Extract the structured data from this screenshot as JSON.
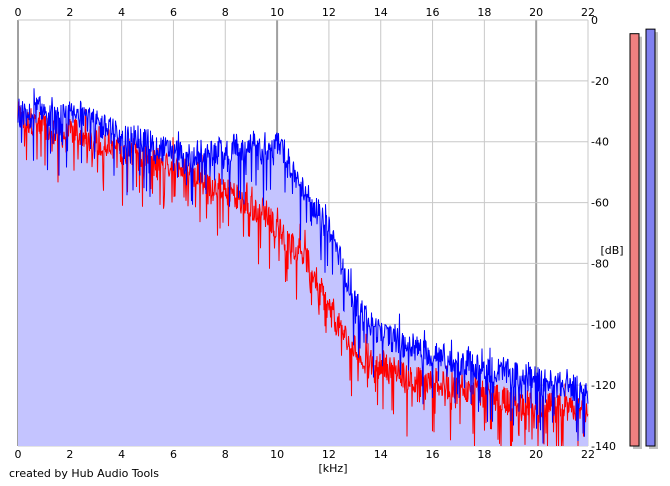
{
  "credit": "created by Hub Audio Tools",
  "chart_data": {
    "type": "area",
    "title": "",
    "xlabel": "[kHz]",
    "ylabel": "[dB]",
    "xlim": [
      0,
      22
    ],
    "ylim": [
      -140,
      0
    ],
    "x_ticks": [
      "0",
      "2",
      "4",
      "6",
      "8",
      "10",
      "12",
      "14",
      "16",
      "18",
      "20",
      "22"
    ],
    "y_ticks": [
      "0",
      "-20",
      "-40",
      "-60",
      "-80",
      "-100",
      "-120",
      "-140"
    ],
    "grid": true,
    "colors": {
      "background": "#ffffff",
      "fill": "#c4c4ff",
      "series_red": "#ff0000",
      "series_blue": "#0000ff",
      "grid_major": "#a0a0a0",
      "grid_minor": "#c8c8c8",
      "meter_red": "#f08080",
      "meter_blue": "#8080f0",
      "meter_shadow": "#c0c0c0"
    },
    "series": [
      {
        "color": "#ff0000",
        "x": [
          0,
          0.25,
          0.5,
          0.75,
          1,
          1.25,
          1.5,
          1.75,
          2,
          2.25,
          2.5,
          2.75,
          3,
          3.25,
          3.5,
          3.75,
          4,
          4.25,
          4.5,
          4.75,
          5,
          5.25,
          5.5,
          5.75,
          6,
          6.25,
          6.5,
          6.75,
          7,
          7.25,
          7.5,
          7.75,
          8,
          8.25,
          8.5,
          8.75,
          9,
          9.25,
          9.5,
          9.75,
          10,
          10.25,
          10.5,
          10.75,
          11,
          11.25,
          11.5,
          11.75,
          12,
          12.25,
          12.5,
          12.75,
          13,
          13.25,
          13.5,
          13.75,
          14,
          14.25,
          14.5,
          14.75,
          15,
          15.25,
          15.5,
          15.75,
          16,
          16.25,
          16.5,
          16.75,
          17,
          17.25,
          17.5,
          17.75,
          18,
          18.25,
          18.5,
          18.75,
          19,
          19.25,
          19.5,
          19.75,
          20,
          20.25,
          20.5,
          20.75,
          21,
          21.25,
          21.5,
          21.75,
          22
        ],
        "values": [
          -31,
          -34,
          -33,
          -35,
          -34,
          -37,
          -36,
          -38,
          -37,
          -36,
          -38,
          -39,
          -40,
          -41,
          -40,
          -42,
          -43,
          -44,
          -43,
          -45,
          -45,
          -47,
          -46,
          -48,
          -47,
          -49,
          -50,
          -51,
          -50,
          -53,
          -54,
          -55,
          -54,
          -57,
          -58,
          -60,
          -61,
          -63,
          -62,
          -66,
          -68,
          -71,
          -73,
          -75,
          -77,
          -80,
          -85,
          -90,
          -95,
          -99,
          -102,
          -106,
          -108,
          -110,
          -111,
          -113,
          -114,
          -114,
          -115,
          -116,
          -117,
          -118,
          -118,
          -119,
          -119,
          -120,
          -120,
          -121,
          -121,
          -122,
          -122,
          -123,
          -123,
          -124,
          -124,
          -125,
          -125,
          -125,
          -126,
          -126,
          -126,
          -127,
          -127,
          -127,
          -128,
          -128,
          -128,
          -128,
          -129
        ]
      },
      {
        "color": "#0000ff",
        "x": [
          0,
          0.25,
          0.5,
          0.75,
          1,
          1.25,
          1.5,
          1.75,
          2,
          2.25,
          2.5,
          2.75,
          3,
          3.25,
          3.5,
          3.75,
          4,
          4.25,
          4.5,
          4.75,
          5,
          5.25,
          5.5,
          5.75,
          6,
          6.25,
          6.5,
          6.75,
          7,
          7.25,
          7.5,
          7.75,
          8,
          8.25,
          8.5,
          8.75,
          9,
          9.25,
          9.5,
          9.75,
          10,
          10.25,
          10.5,
          10.75,
          11,
          11.25,
          11.5,
          11.75,
          12,
          12.25,
          12.5,
          12.75,
          13,
          13.25,
          13.5,
          13.75,
          14,
          14.25,
          14.5,
          14.75,
          15,
          15.25,
          15.5,
          15.75,
          16,
          16.25,
          16.5,
          16.75,
          17,
          17.25,
          17.5,
          17.75,
          18,
          18.25,
          18.5,
          18.75,
          19,
          19.25,
          19.5,
          19.75,
          20,
          20.25,
          20.5,
          20.75,
          21,
          21.25,
          21.5,
          21.75,
          22
        ],
        "values": [
          -30,
          -31,
          -31,
          -29,
          -30,
          -32,
          -33,
          -32,
          -31,
          -32,
          -30,
          -33,
          -34,
          -35,
          -36,
          -37,
          -38,
          -39,
          -38,
          -40,
          -39,
          -41,
          -42,
          -43,
          -42,
          -44,
          -45,
          -44,
          -43,
          -45,
          -44,
          -43,
          -45,
          -42,
          -41,
          -43,
          -40,
          -42,
          -44,
          -43,
          -41,
          -43,
          -47,
          -52,
          -56,
          -59,
          -62,
          -66,
          -69,
          -74,
          -80,
          -86,
          -92,
          -96,
          -99,
          -101,
          -103,
          -104,
          -105,
          -106,
          -107,
          -108,
          -108,
          -109,
          -110,
          -110,
          -111,
          -112,
          -112,
          -113,
          -113,
          -114,
          -114,
          -115,
          -115,
          -116,
          -116,
          -117,
          -117,
          -118,
          -118,
          -119,
          -119,
          -120,
          -120,
          -121,
          -121,
          -122,
          -122
        ]
      }
    ],
    "meters": [
      {
        "color": "#f08080",
        "level_db": -4.5
      },
      {
        "color": "#8080f0",
        "level_db": -3
      }
    ]
  }
}
